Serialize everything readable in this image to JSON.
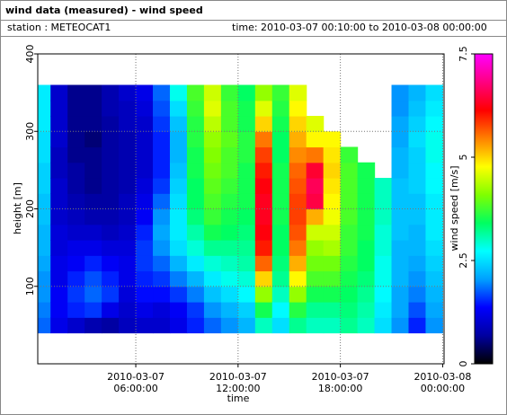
{
  "chart_data": {
    "type": "heatmap",
    "title": "wind data (measured) - wind speed",
    "station": "station : METEOCAT1",
    "time_range": "time: 2010-03-07 00:10:00 to 2010-03-08 00:00:00",
    "xlabel": "time",
    "ylabel": "height [m]",
    "colorbar_label": "wind speed [m/s]",
    "xlim": [
      "2010-03-07 00:15:00",
      "2010-03-08 00:05:00"
    ],
    "xticks": [
      {
        "value": "2010-03-07 06:00:00",
        "label": "2010-03-07 06:00:00"
      },
      {
        "value": "2010-03-07 12:00:00",
        "label": "2010-03-07 12:00:00"
      },
      {
        "value": "2010-03-07 18:00:00",
        "label": "2010-03-07 18:00:00"
      },
      {
        "value": "2010-03-08 00:00:00",
        "label": "2010-03-08 00:00:00"
      }
    ],
    "ylim": [
      0,
      400
    ],
    "yticks": [
      100,
      200,
      300,
      400
    ],
    "clim": [
      0,
      7.5
    ],
    "cticks": [
      0,
      2.5,
      5,
      7.5
    ],
    "grid": true,
    "colors": [
      "#000000",
      "#0000a0",
      "#0000ff",
      "#00a0ff",
      "#00ffff",
      "#00ff60",
      "#80ff00",
      "#ffff00",
      "#ff8000",
      "#ff0000",
      "#ff0080",
      "#ff00ff"
    ],
    "x": [
      "2010-03-07 00:30:00",
      "2010-03-07 01:30:00",
      "2010-03-07 02:30:00",
      "2010-03-07 03:30:00",
      "2010-03-07 04:30:00",
      "2010-03-07 05:30:00",
      "2010-03-07 06:30:00",
      "2010-03-07 07:30:00",
      "2010-03-07 08:30:00",
      "2010-03-07 09:30:00",
      "2010-03-07 10:30:00",
      "2010-03-07 11:30:00",
      "2010-03-07 12:30:00",
      "2010-03-07 13:30:00",
      "2010-03-07 14:30:00",
      "2010-03-07 15:30:00",
      "2010-03-07 16:30:00",
      "2010-03-07 17:30:00",
      "2010-03-07 18:30:00",
      "2010-03-07 19:30:00",
      "2010-03-07 20:30:00",
      "2010-03-07 21:30:00",
      "2010-03-07 22:30:00",
      "2010-03-07 23:30:00"
    ],
    "y": [
      50,
      70,
      90,
      110,
      130,
      150,
      170,
      190,
      210,
      230,
      250,
      270,
      290,
      310,
      330,
      350
    ],
    "z": [
      [
        1.8,
        1.9,
        2.0,
        2.0,
        2.1,
        2.2,
        2.2,
        2.3,
        2.3,
        2.4,
        2.4,
        2.5,
        2.5,
        2.6,
        2.6,
        2.6
      ],
      [
        1.2,
        1.3,
        1.3,
        1.2,
        1.2,
        1.1,
        1.1,
        1.0,
        1.0,
        1.0,
        0.9,
        0.9,
        1.0,
        1.0,
        1.0,
        1.0
      ],
      [
        1.0,
        1.5,
        1.6,
        1.5,
        1.3,
        1.2,
        1.0,
        0.9,
        0.8,
        0.7,
        0.7,
        0.6,
        0.6,
        0.6,
        0.6,
        0.6
      ],
      [
        0.8,
        1.6,
        1.8,
        1.7,
        1.5,
        1.2,
        1.0,
        0.8,
        0.7,
        0.6,
        0.6,
        0.6,
        0.5,
        0.6,
        0.6,
        0.6
      ],
      [
        0.7,
        1.2,
        1.6,
        1.5,
        1.3,
        1.1,
        0.9,
        0.8,
        0.7,
        0.7,
        0.7,
        0.7,
        0.7,
        0.7,
        0.8,
        0.8
      ],
      [
        0.9,
        1.0,
        1.1,
        1.2,
        1.2,
        1.1,
        1.0,
        0.9,
        0.9,
        0.8,
        0.8,
        0.8,
        0.8,
        0.9,
        0.9,
        1.0
      ],
      [
        1.0,
        1.2,
        1.4,
        1.5,
        1.6,
        1.6,
        1.5,
        1.3,
        1.2,
        1.1,
        1.0,
        1.0,
        1.0,
        1.0,
        1.1,
        1.2
      ],
      [
        1.0,
        1.1,
        1.4,
        1.6,
        1.8,
        2.0,
        2.1,
        2.0,
        1.8,
        1.6,
        1.5,
        1.5,
        1.5,
        1.6,
        1.7,
        1.8
      ],
      [
        1.2,
        1.3,
        1.6,
        1.9,
        2.2,
        2.5,
        2.6,
        2.6,
        2.5,
        2.4,
        2.3,
        2.2,
        2.2,
        2.3,
        2.5,
        2.8
      ],
      [
        1.5,
        1.6,
        1.9,
        2.2,
        2.6,
        2.9,
        3.1,
        3.3,
        3.4,
        3.4,
        3.5,
        3.5,
        3.6,
        3.6,
        3.7,
        3.8
      ],
      [
        1.8,
        2.0,
        2.3,
        2.6,
        2.9,
        3.2,
        3.5,
        3.7,
        3.8,
        3.9,
        4.0,
        4.1,
        4.2,
        4.4,
        4.6,
        4.5
      ],
      [
        2.0,
        2.2,
        2.5,
        2.8,
        3.0,
        3.2,
        3.4,
        3.5,
        3.6,
        3.7,
        3.8,
        3.8,
        3.9,
        3.8,
        3.8,
        3.7
      ],
      [
        2.2,
        2.4,
        2.7,
        2.9,
        3.1,
        3.2,
        3.3,
        3.4,
        3.5,
        3.5,
        3.5,
        3.6,
        3.6,
        3.5,
        3.5,
        3.4
      ],
      [
        3.0,
        3.5,
        4.2,
        5.0,
        5.6,
        6.0,
        6.2,
        6.3,
        6.3,
        6.2,
        6.0,
        5.8,
        5.5,
        5.0,
        4.6,
        4.2
      ],
      [
        2.5,
        2.7,
        3.0,
        3.2,
        3.3,
        3.4,
        3.4,
        3.5,
        3.5,
        3.5,
        3.5,
        3.4,
        3.4,
        3.5,
        3.6,
        3.7
      ],
      [
        3.2,
        3.6,
        4.2,
        4.8,
        5.2,
        5.5,
        5.7,
        5.8,
        5.8,
        5.7,
        5.6,
        5.4,
        5.2,
        5.0,
        4.8,
        4.6
      ],
      [
        3.0,
        3.2,
        3.5,
        3.8,
        4.0,
        4.2,
        4.5,
        5.2,
        6.5,
        6.6,
        6.4,
        5.5,
        4.8,
        4.6,
        null,
        null
      ],
      [
        3.0,
        3.2,
        3.5,
        3.8,
        4.0,
        4.3,
        4.5,
        4.7,
        4.8,
        4.9,
        5.0,
        4.9,
        4.8,
        null,
        null,
        null
      ],
      [
        3.2,
        3.3,
        3.4,
        3.5,
        3.6,
        3.7,
        3.7,
        3.8,
        3.8,
        3.8,
        3.8,
        3.7,
        null,
        null,
        null,
        null
      ],
      [
        3.0,
        3.1,
        3.2,
        3.3,
        3.4,
        3.4,
        3.5,
        3.5,
        3.5,
        3.5,
        3.5,
        null,
        null,
        null,
        null,
        null
      ],
      [
        2.5,
        2.6,
        2.7,
        2.8,
        2.8,
        2.9,
        2.9,
        3.0,
        3.0,
        3.0,
        null,
        null,
        null,
        null,
        null,
        null
      ],
      [
        2.0,
        2.1,
        2.1,
        2.2,
        2.2,
        2.2,
        2.3,
        2.3,
        2.3,
        2.3,
        2.2,
        2.2,
        2.1,
        2.1,
        2.0,
        2.0
      ],
      [
        1.5,
        1.7,
        1.9,
        2.0,
        2.1,
        2.2,
        2.2,
        2.3,
        2.3,
        2.4,
        2.4,
        2.4,
        2.5,
        2.4,
        2.3,
        2.2
      ],
      [
        2.0,
        2.1,
        2.2,
        2.3,
        2.4,
        2.5,
        2.6,
        2.6,
        2.6,
        2.7,
        2.7,
        2.8,
        2.8,
        2.7,
        2.6,
        2.5
      ]
    ]
  }
}
